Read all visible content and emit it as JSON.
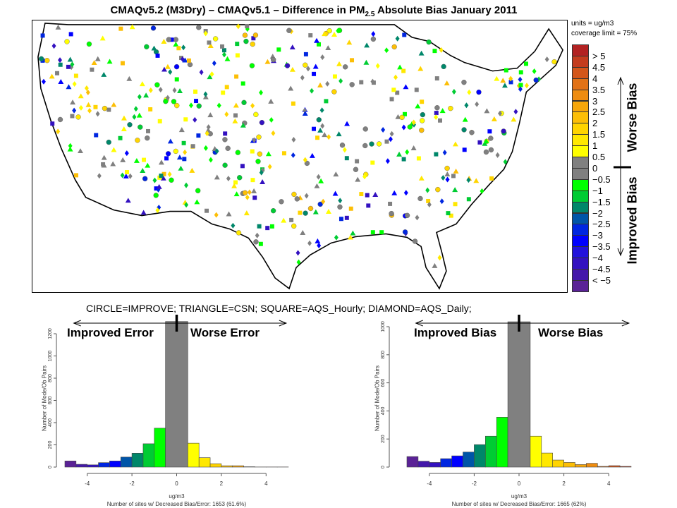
{
  "title": "CMAQv5.2 (M3Dry) – CMAQv5.1 – Difference in PM",
  "title_sub": "2.5",
  "title_end": " Absolute Bias January 2011",
  "units": "units = ug/m3",
  "coverage": "coverage limit = 75%",
  "legend": {
    "colors": [
      "#b22222",
      "#c43c1e",
      "#d4561a",
      "#e27216",
      "#ee8c10",
      "#f6a60a",
      "#fcbe06",
      "#ffd400",
      "#ffe800",
      "#ffff00",
      "#808080",
      "#808080",
      "#00ff00",
      "#00cc33",
      "#00876a",
      "#0055a8",
      "#0026e0",
      "#0000ff",
      "#2212dc",
      "#3311c0",
      "#4418aa",
      "#5a2296"
    ],
    "labels": [
      "> 5",
      "4.5",
      "4",
      "3.5",
      "3",
      "2.5",
      "2",
      "1.5",
      "1",
      "0.5",
      "0",
      "−0.5",
      "−1",
      "−1.5",
      "−2",
      "−2.5",
      "−3",
      "−3.5",
      "−4",
      "−4.5",
      "< −5"
    ],
    "worse": "Worse Bias",
    "improved": "Improved Bias"
  },
  "caption": "CIRCLE=IMPROVE; TRIANGLE=CSN; SQUARE=AQS_Hourly; DIAMOND=AQS_Daily;",
  "chart_data": [
    {
      "type": "bar",
      "title": "",
      "improved_label": "Improved Error",
      "worse_label": "Worse Error",
      "xlabel": "ug/m3",
      "ylabel": "Number of Mode/Ob Pairs",
      "footer": "Number of sites w/ Decreased Bias/Error: 1653 (61.6%)",
      "bin_edges": [
        -5,
        -4.5,
        -4,
        -3.5,
        -3,
        -2.5,
        -2,
        -1.5,
        -1,
        -0.5,
        0.5,
        1,
        1.5,
        2,
        2.5,
        3,
        3.5,
        4,
        4.5,
        5
      ],
      "values": [
        55,
        25,
        20,
        40,
        55,
        90,
        125,
        210,
        350,
        1310,
        215,
        85,
        30,
        12,
        12,
        3,
        1,
        1,
        1
      ],
      "xticks": [
        -4,
        -2,
        0,
        2,
        4
      ],
      "yticks": [
        0,
        200,
        400,
        600,
        800,
        1000,
        1200
      ],
      "ylim": [
        0,
        1200
      ]
    },
    {
      "type": "bar",
      "title": "",
      "improved_label": "Improved Bias",
      "worse_label": "Worse Bias",
      "xlabel": "ug/m3",
      "ylabel": "Number of Mode/Ob Pairs",
      "footer": "Number of sites w/ Decreased Bias/Error: 1665 (62%)",
      "bin_edges": [
        -5,
        -4.5,
        -4,
        -3.5,
        -3,
        -2.5,
        -2,
        -1.5,
        -1,
        -0.5,
        0.5,
        1,
        1.5,
        2,
        2.5,
        3,
        3.5,
        4,
        4.5,
        5
      ],
      "values": [
        75,
        42,
        33,
        60,
        80,
        107,
        160,
        220,
        355,
        1035,
        220,
        100,
        50,
        33,
        18,
        27,
        5,
        10,
        5
      ],
      "xticks": [
        -4,
        -2,
        0,
        2,
        4
      ],
      "yticks": [
        0,
        200,
        400,
        600,
        800,
        1000
      ],
      "ylim": [
        0,
        1000
      ]
    }
  ]
}
